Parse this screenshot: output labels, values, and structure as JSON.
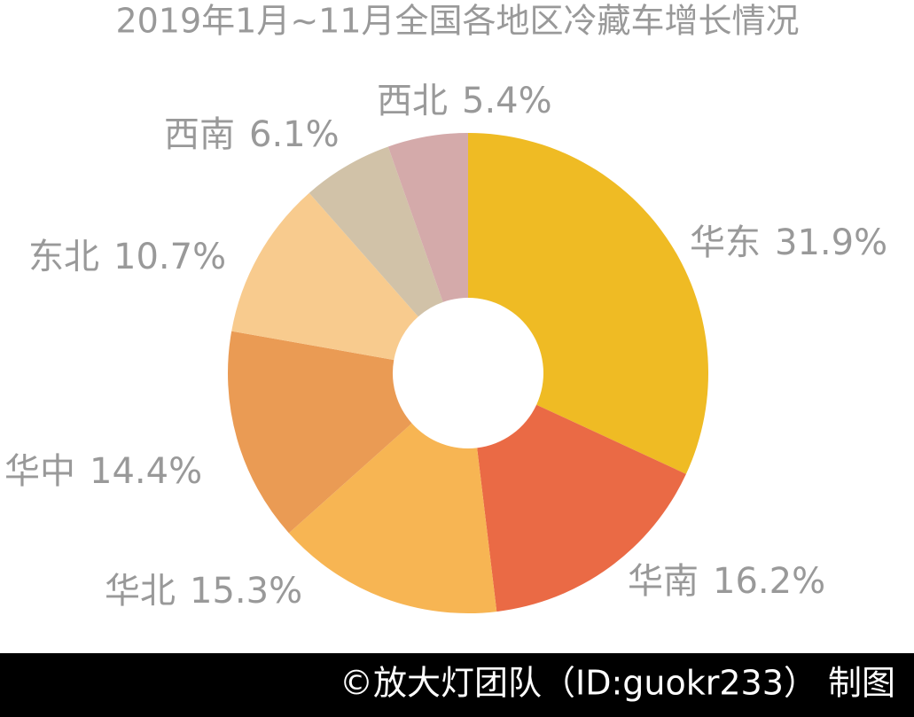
{
  "chart_data": {
    "type": "donut",
    "title": "2019年1月~11月全国各地区冷藏车增长情况",
    "categories": [
      "华东",
      "华南",
      "华北",
      "华中",
      "东北",
      "西南",
      "西北"
    ],
    "values": [
      31.9,
      16.2,
      15.3,
      14.4,
      10.7,
      6.1,
      5.4
    ],
    "value_labels": [
      "31.9%",
      "16.2%",
      "15.3%",
      "14.4%",
      "10.7%",
      "6.1%",
      "5.4%"
    ],
    "colors": [
      "#efbb24",
      "#ea6a45",
      "#f7b553",
      "#ea9b54",
      "#f8cb8e",
      "#d1c2a8",
      "#d4aaaa"
    ]
  },
  "footer": "©放大灯团队（ID:guokr233） 制图"
}
